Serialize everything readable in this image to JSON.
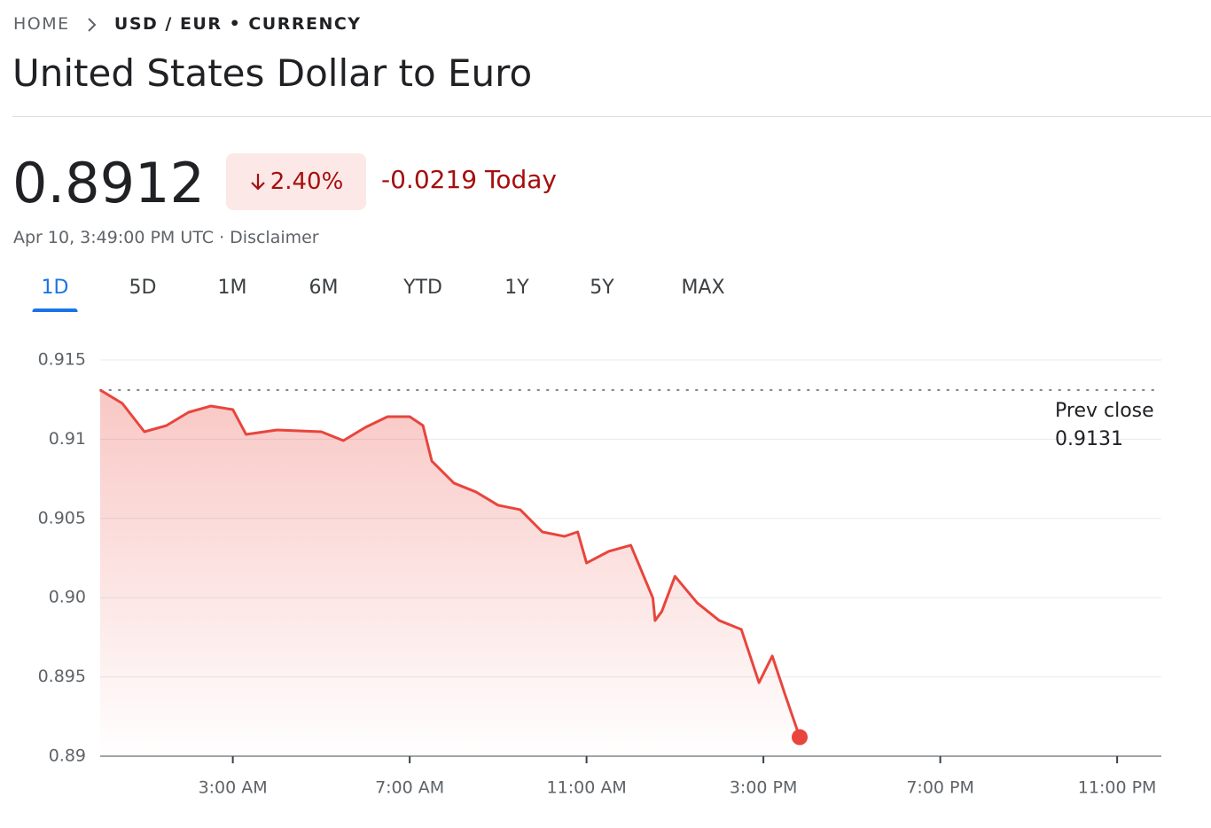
{
  "breadcrumb": {
    "home": "HOME",
    "current": "USD / EUR • CURRENCY"
  },
  "title": "United States Dollar to Euro",
  "price": "0.8912",
  "change_percent": "2.40%",
  "change_value": "-0.0219",
  "change_period": "Today",
  "timestamp": "Apr 10, 3:49:00 PM UTC",
  "separator": "·",
  "disclaimer": "Disclaimer",
  "tabs": [
    "1D",
    "5D",
    "1M",
    "6M",
    "YTD",
    "1Y",
    "5Y",
    "MAX"
  ],
  "active_tab": "1D",
  "chart_data": {
    "type": "line",
    "x": [
      0,
      0.5,
      1,
      1.5,
      2,
      2.5,
      3,
      3.3,
      4,
      5,
      5.5,
      6,
      6.5,
      7,
      7.3,
      7.5,
      8,
      8.5,
      9,
      9.5,
      10,
      10.5,
      10.8,
      11,
      11.5,
      12,
      12.5,
      12.55,
      12.7,
      13,
      13.5,
      14,
      14.5,
      14.9,
      15.2,
      15.5,
      15.82
    ],
    "series": [
      {
        "name": "USD / EUR",
        "color": "#e8453c",
        "values": [
          0.9131,
          0.91226,
          0.91047,
          0.91086,
          0.9117,
          0.91209,
          0.91187,
          0.9103,
          0.91058,
          0.91047,
          0.90991,
          0.91075,
          0.91142,
          0.91142,
          0.91086,
          0.90862,
          0.90723,
          0.90667,
          0.90583,
          0.90555,
          0.90415,
          0.90387,
          0.90415,
          0.90219,
          0.90292,
          0.90331,
          0.89998,
          0.89856,
          0.89912,
          0.90135,
          0.89968,
          0.89856,
          0.898,
          0.89464,
          0.89632,
          0.8938,
          0.8912
        ]
      }
    ],
    "xlim": [
      0,
      24
    ],
    "xticks": [
      {
        "value": 3,
        "label": "3:00 AM"
      },
      {
        "value": 7,
        "label": "7:00 AM"
      },
      {
        "value": 11,
        "label": "11:00 AM"
      },
      {
        "value": 15,
        "label": "3:00 PM"
      },
      {
        "value": 19,
        "label": "7:00 PM"
      },
      {
        "value": 23,
        "label": "11:00 PM"
      }
    ],
    "ylim": [
      0.89,
      0.915
    ],
    "yticks": [
      0.89,
      0.895,
      {
        "value": 0.9,
        "label": "0.90"
      },
      0.905,
      0.91,
      0.915
    ],
    "grid": true,
    "prev_close_label": "Prev close",
    "prev_close": 0.9131
  }
}
